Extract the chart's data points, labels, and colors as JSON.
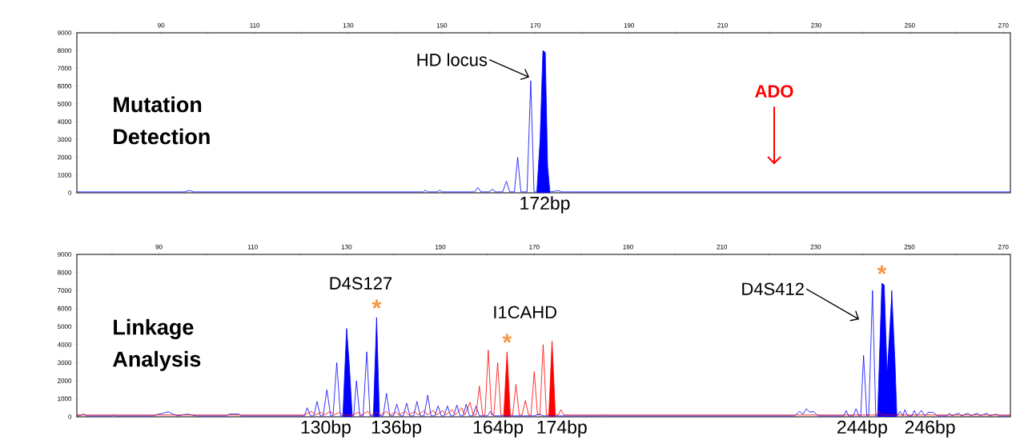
{
  "chart_data": [
    {
      "type": "line",
      "xlim": [
        72,
        271.5
      ],
      "ylim": [
        0,
        9000
      ],
      "xticks": [
        {
          "value": 80,
          "label": null
        },
        90,
        {
          "value": 100,
          "label": null
        },
        110,
        {
          "value": 120,
          "label": null
        },
        130,
        {
          "value": 140,
          "label": null
        },
        150,
        {
          "value": 160,
          "label": null
        },
        170,
        {
          "value": 180,
          "label": null
        },
        190,
        {
          "value": 200,
          "label": null
        },
        210,
        {
          "value": 220,
          "label": null
        },
        230,
        {
          "value": 240,
          "label": null
        },
        250,
        {
          "value": 260,
          "label": null
        },
        270
      ],
      "yticks": [
        0,
        1000,
        2000,
        3000,
        4000,
        5000,
        6000,
        7000,
        8000,
        9000
      ],
      "series": [
        {
          "color": "#0000ff",
          "x": [
            72,
            95,
            96,
            97,
            146,
            146.5,
            147,
            149,
            149.5,
            150,
            157,
            157.7,
            158.4,
            160.1,
            160.8,
            161.5,
            163,
            163.8,
            164.5,
            165.5,
            166.2,
            166.9,
            168.2,
            169,
            169.7,
            170.3,
            171,
            171.6,
            172.1,
            172.6,
            173.1,
            175,
            175.5,
            271.5
          ],
          "values": [
            50,
            50,
            130,
            50,
            50,
            150,
            50,
            50,
            150,
            50,
            50,
            300,
            50,
            50,
            200,
            50,
            50,
            650,
            50,
            50,
            2000,
            50,
            50,
            6300,
            50,
            50,
            3000,
            8000,
            7900,
            1500,
            50,
            120,
            50,
            50
          ]
        },
        {
          "type": "area",
          "color": "#0000ff",
          "x": [
            170.3,
            171,
            171.6,
            172.1,
            172.6,
            173.1
          ],
          "values": [
            0,
            3000,
            8000,
            7900,
            1500,
            0
          ]
        }
      ],
      "annotations": [
        "Mutation Detection",
        {
          "text": "HD locus",
          "x": 168.7,
          "y": 6500
        },
        "ADO",
        {
          "text": "172bp",
          "x": 172,
          "y": 0
        }
      ]
    },
    {
      "type": "line",
      "xlim": [
        72.5,
        271.5
      ],
      "ylim": [
        0,
        9000
      ],
      "xticks": [
        {
          "value": 80,
          "label": null
        },
        90,
        {
          "value": 100,
          "label": null
        },
        110,
        {
          "value": 120,
          "label": null
        },
        130,
        {
          "value": 140,
          "label": null
        },
        150,
        {
          "value": 160,
          "label": null
        },
        170,
        {
          "value": 180,
          "label": null
        },
        190,
        {
          "value": 200,
          "label": null
        },
        210,
        {
          "value": 220,
          "label": null
        },
        230,
        {
          "value": 240,
          "label": null
        },
        250,
        {
          "value": 260,
          "label": null
        },
        270
      ],
      "yticks": [
        0,
        1000,
        2000,
        3000,
        4000,
        5000,
        6000,
        7000,
        8000,
        9000
      ],
      "series": [
        {
          "color": "#0000ff",
          "x": [
            72.5,
            73,
            74,
            74.5,
            80,
            80.3,
            80.6,
            89,
            89.5,
            91,
            92,
            93,
            94,
            95,
            96,
            97,
            98,
            104.5,
            105,
            107,
            107.5,
            121,
            121.6,
            122.3,
            123,
            123.7,
            124.4,
            125,
            125.8,
            126.6,
            127.1,
            127.9,
            128.7,
            129.2,
            130,
            130.6,
            131.2,
            131.5,
            132.1,
            132.8,
            133.5,
            134.3,
            135,
            135.7,
            136.4,
            137,
            137.8,
            138.5,
            139.2,
            140,
            140.7,
            141.4,
            142.1,
            142.8,
            143.5,
            144.3,
            145,
            145.7,
            146.5,
            147.3,
            148,
            148.8,
            149.5,
            150.2,
            150.8,
            151.5,
            152.2,
            152.8,
            153.5,
            154.2,
            154.8,
            155.5,
            156.2,
            156.9,
            157.6,
            158.3,
            160,
            160.7,
            161.4,
            163,
            164,
            165,
            170,
            171,
            172,
            176,
            185,
            185.2,
            185.4,
            225.5,
            226.5,
            227.3,
            228,
            228.7,
            229.5,
            230.5,
            236,
            236.5,
            237,
            238,
            238.6,
            239.2,
            239.6,
            240.2,
            240.9,
            241.3,
            242.1,
            242.8,
            243.2,
            244.1,
            244.6,
            245.2,
            245.6,
            246.2,
            246.9,
            247.3,
            248,
            248.6,
            249,
            249.6,
            250.5,
            251,
            251.6,
            252.5,
            253.3,
            254,
            255,
            256,
            258,
            258.5,
            259,
            260.5,
            261,
            262.5,
            263,
            264.5,
            265,
            266.5,
            267,
            268.5,
            269,
            271.5
          ],
          "values": [
            50,
            50,
            150,
            50,
            50,
            100,
            50,
            50,
            120,
            200,
            280,
            150,
            50,
            100,
            150,
            null,
            50,
            50,
            150,
            150,
            50,
            50,
            500,
            50,
            50,
            850,
            50,
            50,
            1500,
            50,
            50,
            3000,
            50,
            50,
            4900,
            2800,
            50,
            50,
            2000,
            50,
            50,
            3600,
            50,
            50,
            5500,
            50,
            50,
            1300,
            50,
            50,
            700,
            50,
            50,
            750,
            50,
            50,
            850,
            50,
            50,
            1200,
            50,
            50,
            600,
            50,
            50,
            600,
            50,
            50,
            650,
            50,
            50,
            700,
            50,
            50,
            600,
            50,
            50,
            300,
            50,
            50,
            null,
            50,
            50,
            150,
            50,
            50,
            50,
            120,
            50,
            50,
            300,
            150,
            450,
            250,
            300,
            50,
            50,
            350,
            50,
            50,
            450,
            50,
            50,
            3400,
            50,
            50,
            7000,
            50,
            50,
            7400,
            7300,
            2500,
            50,
            7000,
            3000,
            50,
            300,
            50,
            400,
            50,
            50,
            350,
            50,
            350,
            50,
            250,
            250,
            50,
            50,
            200,
            50,
            200,
            50,
            200,
            50,
            200,
            50,
            200,
            50,
            150,
            50,
            50
          ]
        },
        {
          "type": "area",
          "color": "#0000ff",
          "x": [
            129.2,
            130,
            130.6,
            131.2
          ],
          "values": [
            0,
            4900,
            2800,
            0
          ]
        },
        {
          "type": "area",
          "color": "#0000ff",
          "x": [
            135.7,
            136.4,
            137
          ],
          "values": [
            0,
            5500,
            0
          ]
        },
        {
          "type": "area",
          "color": "#0000ff",
          "x": [
            243.2,
            244.1,
            244.6,
            245.2,
            246.2,
            246.9,
            247.3
          ],
          "values": [
            0,
            7400,
            7300,
            2500,
            7000,
            3000,
            0
          ]
        },
        {
          "color": "#ff0000",
          "x": [
            72.5,
            121,
            122.5,
            123.3,
            124.5,
            125.2,
            126.5,
            127.3,
            128.5,
            129.2,
            130.5,
            131.2,
            132.5,
            133.2,
            134.5,
            135.2,
            136.5,
            137.2,
            138.5,
            139.2,
            140.5,
            141.2,
            142.5,
            143.2,
            144.5,
            145.2,
            146.5,
            147.2,
            148.5,
            149.2,
            150.5,
            151.2,
            152.5,
            153.2,
            154.5,
            155.2,
            156.3,
            157,
            157.6,
            158.3,
            159,
            159.5,
            160.2,
            160.9,
            161.4,
            162.2,
            162.9,
            163.5,
            164.2,
            164.9,
            165.4,
            166.1,
            166.8,
            167.4,
            168.1,
            168.8,
            169.3,
            170,
            170.7,
            171.2,
            171.9,
            172.6,
            173.1,
            173.8,
            174.5,
            175.1,
            175.7,
            176.3,
            243,
            243.5,
            244,
            271.5
          ],
          "values": [
            100,
            100,
            300,
            100,
            250,
            100,
            300,
            100,
            250,
            100,
            null,
            100,
            250,
            100,
            300,
            100,
            250,
            100,
            300,
            100,
            250,
            100,
            300,
            100,
            300,
            100,
            350,
            100,
            350,
            100,
            350,
            100,
            400,
            100,
            500,
            100,
            800,
            100,
            100,
            1700,
            100,
            100,
            3700,
            100,
            100,
            3000,
            100,
            100,
            3600,
            100,
            100,
            1800,
            100,
            100,
            900,
            100,
            100,
            2500,
            100,
            100,
            4000,
            100,
            100,
            4200,
            100,
            100,
            400,
            100,
            100,
            300,
            100,
            100
          ]
        },
        {
          "type": "area",
          "color": "#ff0000",
          "x": [
            163.5,
            164.2,
            164.9
          ],
          "values": [
            0,
            3600,
            0
          ]
        },
        {
          "type": "area",
          "color": "#ff0000",
          "x": [
            173.1,
            173.8,
            174.5
          ],
          "values": [
            0,
            4200,
            0
          ]
        }
      ],
      "annotations": [
        "Linkage Analysis",
        "D4S127",
        {
          "text": "*",
          "x": 136.4,
          "y": 5500
        },
        "I1CAHD",
        {
          "text": "*",
          "x": 164.2,
          "y": 3600
        },
        "D4S412",
        {
          "text": "*",
          "x": 244.1,
          "y": 7400
        },
        {
          "text": "130bp",
          "x": 130,
          "y": 0
        },
        {
          "text": "136bp",
          "x": 136,
          "y": 0
        },
        {
          "text": "164bp",
          "x": 164,
          "y": 0
        },
        {
          "text": "174bp",
          "x": 174,
          "y": 0
        },
        {
          "text": "244bp",
          "x": 244,
          "y": 0
        },
        {
          "text": "246bp",
          "x": 246,
          "y": 0
        }
      ]
    }
  ]
}
